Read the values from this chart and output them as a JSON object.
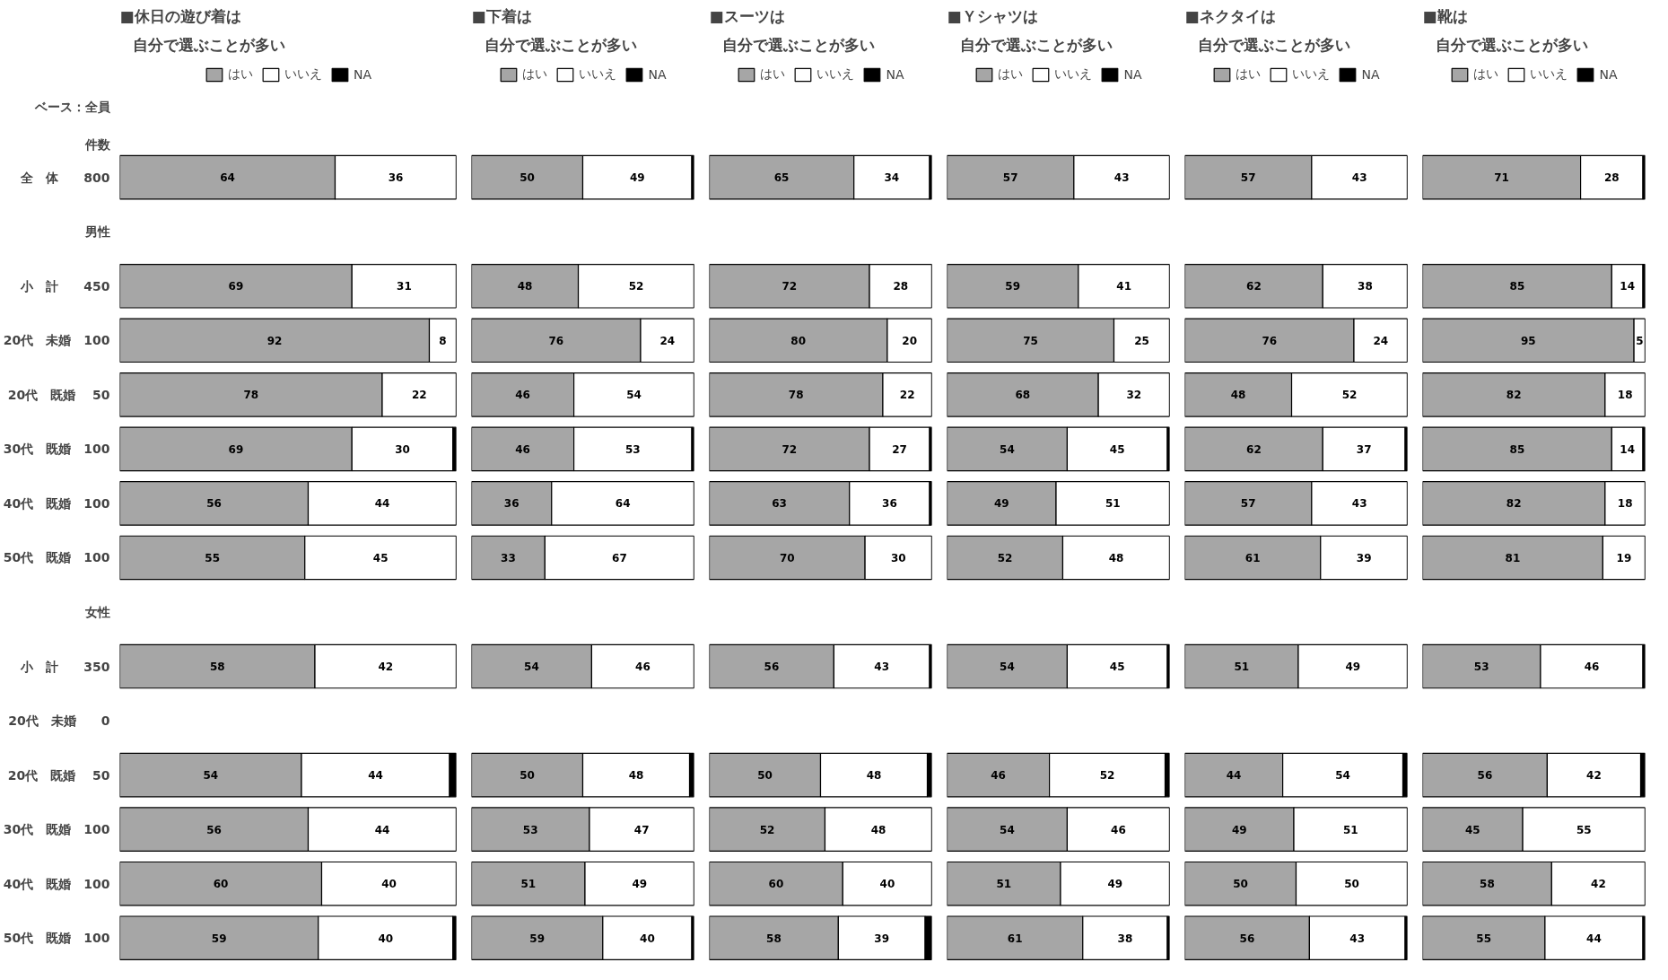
{
  "chart_data": [
    {
      "type": "bar",
      "orientation": "horizontal",
      "stacked": true,
      "title": "■休日の遊び着は",
      "subtitle": "自分で選ぶことが多い",
      "legend": "top",
      "tick_labels": "y",
      "xlim": [
        0,
        100
      ],
      "annotations": [
        "ベース：全員",
        "件数"
      ],
      "categories": [
        "全　体　　800",
        "男性",
        "小　計　　450",
        "20代　未婚　100",
        "20代　既婚　 50",
        "30代　既婚　100",
        "40代　既婚　100",
        "50代　既婚　100",
        "女性",
        "小　計　　350",
        "20代　未婚　　0",
        "20代　既婚　 50",
        "30代　既婚　100",
        "40代　既婚　100",
        "50代　既婚　100"
      ],
      "series": [
        {
          "name": "はい",
          "color": "#a6a6a6",
          "values": [
            64,
            null,
            69,
            92,
            78,
            69,
            56,
            55,
            null,
            58,
            null,
            54,
            56,
            60,
            59
          ],
          "value_labels": [
            "64",
            null,
            "69",
            "92",
            "78",
            "69",
            "56",
            "55",
            null,
            "58",
            null,
            "54",
            "56",
            "60",
            "59"
          ]
        },
        {
          "name": "いいえ",
          "color": "#ffffff",
          "values": [
            36,
            null,
            31,
            8,
            22,
            30,
            44,
            45,
            null,
            42,
            null,
            44,
            44,
            40,
            40
          ],
          "value_labels": [
            "36",
            null,
            "31",
            "8",
            "22",
            "30",
            "44",
            "45",
            null,
            "42",
            null,
            "44",
            "44",
            "40",
            "40"
          ]
        },
        {
          "name": "NA",
          "color": "#000000",
          "values": [
            0,
            null,
            0,
            0,
            0,
            1,
            0,
            0,
            null,
            0,
            null,
            2,
            0,
            0,
            1
          ]
        }
      ]
    },
    {
      "type": "bar",
      "orientation": "horizontal",
      "stacked": true,
      "title": "■下着は",
      "subtitle": "自分で選ぶことが多い",
      "legend": "top",
      "tick_labels": false,
      "xlim": [
        0,
        100
      ],
      "categories": [
        null,
        null,
        null,
        null,
        null,
        null,
        null,
        null,
        null,
        null,
        null,
        null,
        null,
        null,
        null
      ],
      "series": [
        {
          "name": "はい",
          "color": "#a6a6a6",
          "values": [
            50,
            null,
            48,
            76,
            46,
            46,
            36,
            33,
            null,
            54,
            null,
            50,
            53,
            51,
            59
          ],
          "value_labels": [
            "50",
            null,
            "48",
            "76",
            "46",
            "46",
            "36",
            "33",
            null,
            "54",
            null,
            "50",
            "53",
            "51",
            "59"
          ]
        },
        {
          "name": "いいえ",
          "color": "#ffffff",
          "values": [
            49,
            null,
            52,
            24,
            54,
            53,
            64,
            67,
            null,
            46,
            null,
            48,
            47,
            49,
            40
          ],
          "value_labels": [
            "49",
            null,
            "52",
            "24",
            "54",
            "53",
            "64",
            "67",
            null,
            "46",
            null,
            "48",
            "47",
            "49",
            "40"
          ]
        },
        {
          "name": "NA",
          "color": "#000000",
          "values": [
            1,
            null,
            0,
            0,
            0,
            1,
            0,
            0,
            null,
            0,
            null,
            2,
            0,
            0,
            1
          ]
        }
      ]
    },
    {
      "type": "bar",
      "orientation": "horizontal",
      "stacked": true,
      "title": "■スーツは",
      "subtitle": "自分で選ぶことが多い",
      "legend": "top",
      "tick_labels": false,
      "xlim": [
        0,
        100
      ],
      "categories": [
        null,
        null,
        null,
        null,
        null,
        null,
        null,
        null,
        null,
        null,
        null,
        null,
        null,
        null,
        null
      ],
      "series": [
        {
          "name": "はい",
          "color": "#a6a6a6",
          "values": [
            65,
            null,
            72,
            80,
            78,
            72,
            63,
            70,
            null,
            56,
            null,
            50,
            52,
            60,
            58
          ],
          "value_labels": [
            "65",
            null,
            "72",
            "80",
            "78",
            "72",
            "63",
            "70",
            null,
            "56",
            null,
            "50",
            "52",
            "60",
            "58"
          ]
        },
        {
          "name": "いいえ",
          "color": "#ffffff",
          "values": [
            34,
            null,
            28,
            20,
            22,
            27,
            36,
            30,
            null,
            43,
            null,
            48,
            48,
            40,
            39
          ],
          "value_labels": [
            "34",
            null,
            "28",
            "20",
            "22",
            "27",
            "36",
            "30",
            null,
            "43",
            null,
            "48",
            "48",
            "40",
            "39"
          ]
        },
        {
          "name": "NA",
          "color": "#000000",
          "values": [
            1,
            null,
            0,
            0,
            0,
            1,
            1,
            0,
            null,
            1,
            null,
            2,
            0,
            0,
            3
          ]
        }
      ]
    },
    {
      "type": "bar",
      "orientation": "horizontal",
      "stacked": true,
      "title": "■Ｙシャツは",
      "subtitle": "自分で選ぶことが多い",
      "legend": "top",
      "tick_labels": false,
      "xlim": [
        0,
        100
      ],
      "categories": [
        null,
        null,
        null,
        null,
        null,
        null,
        null,
        null,
        null,
        null,
        null,
        null,
        null,
        null,
        null
      ],
      "series": [
        {
          "name": "はい",
          "color": "#a6a6a6",
          "values": [
            57,
            null,
            59,
            75,
            68,
            54,
            49,
            52,
            null,
            54,
            null,
            46,
            54,
            51,
            61
          ],
          "value_labels": [
            "57",
            null,
            "59",
            "75",
            "68",
            "54",
            "49",
            "52",
            null,
            "54",
            null,
            "46",
            "54",
            "51",
            "61"
          ]
        },
        {
          "name": "いいえ",
          "color": "#ffffff",
          "values": [
            43,
            null,
            41,
            25,
            32,
            45,
            51,
            48,
            null,
            45,
            null,
            52,
            46,
            49,
            38
          ],
          "value_labels": [
            "43",
            null,
            "41",
            "25",
            "32",
            "45",
            "51",
            "48",
            null,
            "45",
            null,
            "52",
            "46",
            "49",
            "38"
          ]
        },
        {
          "name": "NA",
          "color": "#000000",
          "values": [
            0,
            null,
            0,
            0,
            0,
            1,
            0,
            0,
            null,
            1,
            null,
            2,
            0,
            0,
            1
          ]
        }
      ]
    },
    {
      "type": "bar",
      "orientation": "horizontal",
      "stacked": true,
      "title": "■ネクタイは",
      "subtitle": "自分で選ぶことが多い",
      "legend": "top",
      "tick_labels": false,
      "xlim": [
        0,
        100
      ],
      "categories": [
        null,
        null,
        null,
        null,
        null,
        null,
        null,
        null,
        null,
        null,
        null,
        null,
        null,
        null,
        null
      ],
      "series": [
        {
          "name": "はい",
          "color": "#a6a6a6",
          "values": [
            57,
            null,
            62,
            76,
            48,
            62,
            57,
            61,
            null,
            51,
            null,
            44,
            49,
            50,
            56
          ],
          "value_labels": [
            "57",
            null,
            "62",
            "76",
            "48",
            "62",
            "57",
            "61",
            null,
            "51",
            null,
            "44",
            "49",
            "50",
            "56"
          ]
        },
        {
          "name": "いいえ",
          "color": "#ffffff",
          "values": [
            43,
            null,
            38,
            24,
            52,
            37,
            43,
            39,
            null,
            49,
            null,
            54,
            51,
            50,
            43
          ],
          "value_labels": [
            "43",
            null,
            "38",
            "24",
            "52",
            "37",
            "43",
            "39",
            null,
            "49",
            null,
            "54",
            "51",
            "50",
            "43"
          ]
        },
        {
          "name": "NA",
          "color": "#000000",
          "values": [
            0,
            null,
            0,
            0,
            0,
            1,
            0,
            0,
            null,
            0,
            null,
            2,
            0,
            0,
            1
          ]
        }
      ]
    },
    {
      "type": "bar",
      "orientation": "horizontal",
      "stacked": true,
      "title": "■靴は",
      "subtitle": "自分で選ぶことが多い",
      "legend": "top",
      "tick_labels": false,
      "xlim": [
        0,
        100
      ],
      "categories": [
        null,
        null,
        null,
        null,
        null,
        null,
        null,
        null,
        null,
        null,
        null,
        null,
        null,
        null,
        null
      ],
      "series": [
        {
          "name": "はい",
          "color": "#a6a6a6",
          "values": [
            71,
            null,
            85,
            95,
            82,
            85,
            82,
            81,
            null,
            53,
            null,
            56,
            45,
            58,
            55
          ],
          "value_labels": [
            "71",
            null,
            "85",
            "95",
            "82",
            "85",
            "82",
            "81",
            null,
            "53",
            null,
            "56",
            "45",
            "58",
            "55"
          ]
        },
        {
          "name": "いいえ",
          "color": "#ffffff",
          "values": [
            28,
            null,
            14,
            5,
            18,
            14,
            18,
            19,
            null,
            46,
            null,
            42,
            55,
            42,
            44
          ],
          "value_labels": [
            "28",
            null,
            "14",
            "5",
            "18",
            "14",
            "18",
            "19",
            null,
            "46",
            null,
            "42",
            "55",
            "42",
            "44"
          ]
        },
        {
          "name": "NA",
          "color": "#000000",
          "values": [
            1,
            null,
            1,
            0,
            0,
            1,
            0,
            0,
            null,
            1,
            null,
            2,
            0,
            0,
            1
          ]
        }
      ]
    }
  ]
}
